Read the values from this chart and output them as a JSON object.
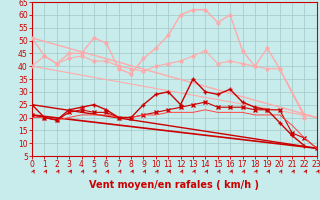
{
  "xlabel": "Vent moyen/en rafales ( km/h )",
  "xlim": [
    0,
    23
  ],
  "ylim": [
    5,
    65
  ],
  "yticks": [
    5,
    10,
    15,
    20,
    25,
    30,
    35,
    40,
    45,
    50,
    55,
    60,
    65
  ],
  "xticks": [
    0,
    1,
    2,
    3,
    4,
    5,
    6,
    7,
    8,
    9,
    10,
    11,
    12,
    13,
    14,
    15,
    16,
    17,
    18,
    19,
    20,
    21,
    22,
    23
  ],
  "bg_color": "#c8ecec",
  "grid_color": "#a0c8c8",
  "axis_color": "#cc0000",
  "text_color": "#cc0000",
  "lines": [
    {
      "x": [
        0,
        1,
        2,
        3,
        4,
        5,
        6,
        7,
        8,
        9,
        10,
        11,
        12,
        13,
        14,
        15,
        16,
        17,
        18,
        19,
        20,
        22
      ],
      "y": [
        51,
        44,
        41,
        45,
        45,
        51,
        49,
        39,
        37,
        43,
        47,
        52,
        60,
        62,
        62,
        57,
        60,
        46,
        40,
        47,
        39,
        21
      ],
      "color": "#ffaaaa",
      "marker": "o",
      "markersize": 2,
      "linewidth": 1.0,
      "zorder": 3
    },
    {
      "x": [
        0,
        23
      ],
      "y": [
        51,
        20
      ],
      "color": "#ffaaaa",
      "marker": null,
      "markersize": 0,
      "linewidth": 1.0,
      "zorder": 2
    },
    {
      "x": [
        0,
        1,
        2,
        3,
        4,
        5,
        6,
        7,
        8,
        9,
        10,
        11,
        12,
        13,
        14,
        15,
        16,
        17,
        18,
        19,
        20,
        22
      ],
      "y": [
        40,
        44,
        41,
        43,
        44,
        42,
        42,
        40,
        39,
        38,
        40,
        41,
        42,
        44,
        46,
        41,
        42,
        41,
        40,
        39,
        39,
        20
      ],
      "color": "#ffaaaa",
      "marker": "o",
      "markersize": 2,
      "linewidth": 0.8,
      "zorder": 3
    },
    {
      "x": [
        0,
        23
      ],
      "y": [
        40,
        20
      ],
      "color": "#ffaaaa",
      "marker": null,
      "markersize": 0,
      "linewidth": 0.8,
      "zorder": 2
    },
    {
      "x": [
        0,
        1,
        2,
        3,
        4,
        5,
        6,
        7,
        8,
        9,
        10,
        11,
        12,
        13,
        14,
        15,
        16,
        17,
        18,
        19,
        20,
        21,
        22
      ],
      "y": [
        25,
        20,
        19,
        23,
        24,
        25,
        23,
        20,
        20,
        25,
        29,
        30,
        25,
        35,
        30,
        29,
        31,
        26,
        24,
        23,
        18,
        13,
        9
      ],
      "color": "#cc0000",
      "marker": "+",
      "markersize": 3,
      "linewidth": 1.0,
      "zorder": 4
    },
    {
      "x": [
        0,
        23
      ],
      "y": [
        25,
        8
      ],
      "color": "#cc0000",
      "marker": null,
      "markersize": 0,
      "linewidth": 1.0,
      "zorder": 2
    },
    {
      "x": [
        0,
        1,
        2,
        3,
        4,
        5,
        6,
        7,
        8,
        9,
        10,
        11,
        12,
        13,
        14,
        15,
        16,
        17,
        18,
        19,
        20,
        21,
        22,
        23
      ],
      "y": [
        21,
        20,
        19,
        22,
        23,
        22,
        22,
        20,
        20,
        21,
        22,
        23,
        24,
        25,
        26,
        24,
        24,
        24,
        23,
        23,
        23,
        14,
        12,
        8
      ],
      "color": "#cc0000",
      "marker": "x",
      "markersize": 2.5,
      "linewidth": 0.8,
      "zorder": 3
    },
    {
      "x": [
        0,
        23
      ],
      "y": [
        21,
        8
      ],
      "color": "#cc0000",
      "marker": null,
      "markersize": 0,
      "linewidth": 1.2,
      "zorder": 2
    },
    {
      "x": [
        0,
        1,
        2,
        3,
        4,
        5,
        6,
        7,
        8,
        9,
        10,
        11,
        12,
        13,
        14,
        15,
        16,
        17,
        18,
        19,
        20,
        21,
        22,
        23
      ],
      "y": [
        20,
        20,
        19,
        20,
        21,
        21,
        21,
        20,
        20,
        21,
        21,
        22,
        22,
        22,
        23,
        22,
        22,
        22,
        21,
        21,
        21,
        17,
        12,
        8
      ],
      "color": "#ff4444",
      "marker": null,
      "markersize": 0,
      "linewidth": 0.7,
      "zorder": 3
    }
  ],
  "arrow_color": "#cc0000",
  "tick_fontsize": 5.5,
  "xlabel_fontsize": 7
}
